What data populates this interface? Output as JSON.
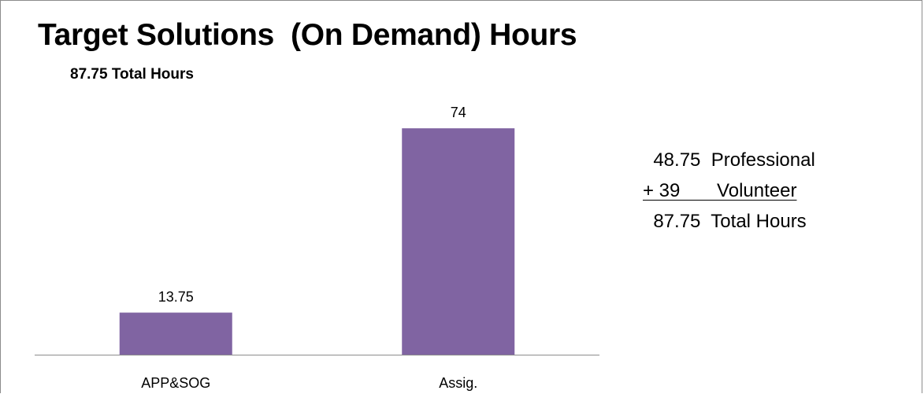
{
  "chart_data": {
    "type": "bar",
    "title": "Target Solutions  (On Demand) Hours",
    "subtitle": "87.75 Total Hours",
    "categories": [
      "APP&SOG",
      "Assig."
    ],
    "values": [
      13.75,
      74
    ],
    "data_labels": [
      "13.75",
      "74"
    ],
    "ylim": [
      0,
      80
    ],
    "grid": false,
    "legend": "none",
    "bar_color": "#8064a2"
  },
  "summary": {
    "line1": "  48.75  Professional",
    "line2": "+ 39       Volunteer",
    "line3": "  87.75  Total Hours"
  }
}
